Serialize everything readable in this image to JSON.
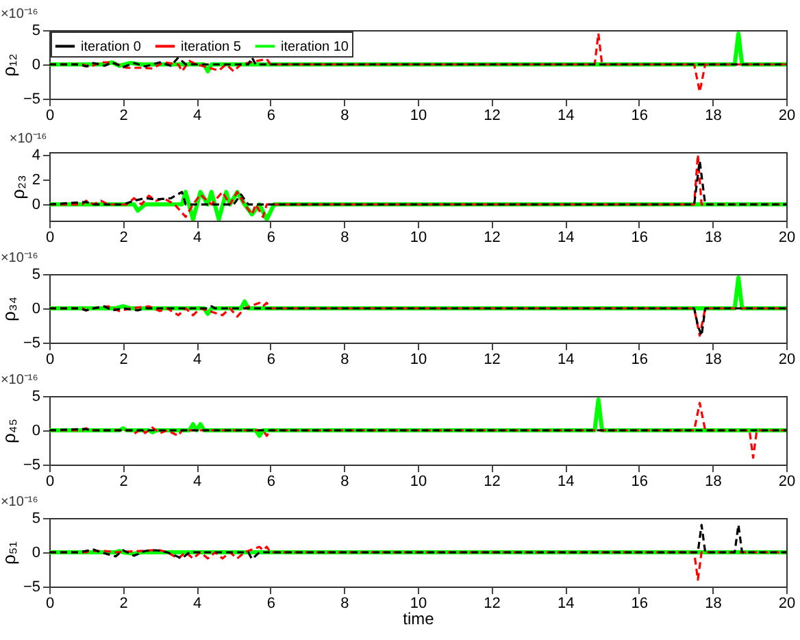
{
  "chart_data": [
    {
      "type": "line",
      "ylabel": "ρ₁₂",
      "annotations": [
        "×10⁻¹⁶"
      ],
      "xlim": [
        0,
        20
      ],
      "xticks": [
        0,
        2,
        4,
        6,
        8,
        10,
        12,
        14,
        16,
        18,
        20
      ],
      "ylim": [
        -5,
        5
      ],
      "yticks": [
        -5,
        0,
        5
      ],
      "legend": "top left",
      "grid": false,
      "series": [
        {
          "name": "iteration 0",
          "color": "#000000",
          "line_style": "dashed",
          "x": [
            0,
            0.8,
            1.0,
            1.2,
            1.5,
            1.7,
            2.0,
            2.3,
            2.6,
            3.0,
            3.3,
            3.5,
            3.7,
            5.4,
            5.5,
            5.6,
            20
          ],
          "values": [
            0,
            0,
            -0.3,
            0.2,
            -0.2,
            0.3,
            -0.4,
            0.2,
            -0.3,
            0.3,
            -0.2,
            1.0,
            0,
            0,
            1.0,
            0,
            0
          ]
        },
        {
          "name": "iteration 5",
          "color": "#ff0000",
          "line_style": "dashed",
          "x": [
            0,
            0.9,
            1.1,
            1.4,
            1.7,
            2.1,
            2.5,
            2.8,
            3.1,
            3.5,
            3.6,
            3.8,
            4.0,
            4.6,
            4.8,
            5.0,
            5.2,
            5.9,
            6.0,
            14.8,
            14.9,
            15.0,
            17.5,
            17.65,
            17.8,
            20
          ],
          "values": [
            0,
            0,
            -0.4,
            0.3,
            0.3,
            -0.5,
            -0.5,
            -0.6,
            0.3,
            0,
            -1.0,
            0.5,
            0,
            -0.9,
            0,
            -1.0,
            0,
            0.8,
            0,
            0,
            4.5,
            0,
            0,
            -4.0,
            0,
            0
          ]
        },
        {
          "name": "iteration 10",
          "color": "#00ff00",
          "line_style": "solid",
          "x": [
            0,
            1.5,
            1.7,
            1.9,
            2.2,
            2.5,
            4.2,
            4.3,
            4.4,
            18.6,
            18.7,
            18.8,
            20
          ],
          "values": [
            0,
            0,
            0.3,
            -0.2,
            0.2,
            0,
            0,
            -1.0,
            0,
            0,
            4.5,
            0,
            0
          ]
        }
      ]
    },
    {
      "type": "line",
      "ylabel": "ρ₂₃",
      "annotations": [
        "×10⁻¹⁶"
      ],
      "xlim": [
        0,
        20
      ],
      "xticks": [
        0,
        2,
        4,
        6,
        8,
        10,
        12,
        14,
        16,
        18,
        20
      ],
      "ylim": [
        -1.3,
        4.2
      ],
      "yticks": [
        0,
        2,
        4
      ],
      "grid": false,
      "series": [
        {
          "color": "#000000",
          "line_style": "dashed",
          "x": [
            0,
            1.0,
            1.2,
            2.0,
            2.3,
            2.6,
            2.9,
            3.3,
            3.6,
            3.7,
            5.0,
            5.2,
            5.4,
            17.5,
            17.65,
            17.8,
            20
          ],
          "values": [
            0,
            0.2,
            0,
            0,
            0.3,
            0.5,
            0.4,
            0.5,
            1.0,
            0,
            0,
            0.8,
            0,
            0,
            3.5,
            0,
            0
          ]
        },
        {
          "color": "#ff0000",
          "line_style": "dashed",
          "x": [
            0,
            0.9,
            1.0,
            1.2,
            1.4,
            1.6,
            2.1,
            2.3,
            2.5,
            2.7,
            2.9,
            3.1,
            3.4,
            3.7,
            3.9,
            4.1,
            4.4,
            4.7,
            4.9,
            5.1,
            5.3,
            5.5,
            5.6,
            5.8,
            5.9,
            17.5,
            17.6,
            17.7,
            20
          ],
          "values": [
            0,
            0,
            0.3,
            0,
            0.3,
            0,
            0,
            0.5,
            0,
            0.7,
            0.3,
            0.5,
            0,
            -1.0,
            0,
            0.8,
            0,
            1.0,
            0,
            1.0,
            0,
            -0.8,
            0,
            -1.0,
            0,
            0,
            4.0,
            0,
            0
          ]
        },
        {
          "color": "#00ff00",
          "line_style": "solid",
          "x": [
            0,
            2.3,
            2.4,
            2.6,
            3.6,
            3.7,
            3.9,
            4.1,
            4.3,
            4.4,
            4.6,
            4.8,
            4.9,
            5.1,
            5.3,
            5.5,
            5.7,
            5.9,
            6.1,
            20
          ],
          "values": [
            0,
            0,
            -0.5,
            0,
            0,
            1.0,
            -1.2,
            1.0,
            0,
            1.0,
            -1.2,
            1.0,
            0,
            1.0,
            0,
            -0.8,
            0,
            -1.2,
            0,
            0
          ]
        }
      ]
    },
    {
      "type": "line",
      "ylabel": "ρ₃₄",
      "annotations": [
        "×10⁻¹⁶"
      ],
      "xlim": [
        0,
        20
      ],
      "xticks": [
        0,
        2,
        4,
        6,
        8,
        10,
        12,
        14,
        16,
        18,
        20
      ],
      "ylim": [
        -5,
        5
      ],
      "yticks": [
        -5,
        0,
        5
      ],
      "grid": false,
      "series": [
        {
          "color": "#000000",
          "line_style": "dashed",
          "x": [
            0,
            0.8,
            1.0,
            1.2,
            1.5,
            1.7,
            2.0,
            2.4,
            2.6,
            4.3,
            4.4,
            4.5,
            17.5,
            17.6,
            17.7,
            17.8,
            20
          ],
          "values": [
            0,
            0,
            -0.3,
            0,
            0.3,
            -0.3,
            0,
            -0.3,
            0,
            0,
            0.3,
            0,
            0,
            -2.5,
            -4.0,
            0,
            0
          ]
        },
        {
          "color": "#ff0000",
          "line_style": "dashed",
          "x": [
            0,
            0.9,
            1.0,
            1.2,
            1.6,
            1.9,
            2.2,
            2.7,
            3.0,
            3.2,
            3.5,
            3.7,
            3.9,
            4.1,
            4.7,
            4.9,
            5.1,
            5.3,
            5.7,
            5.8,
            5.9,
            6.0,
            17.5,
            17.65,
            17.8,
            20
          ],
          "values": [
            0,
            0,
            -0.3,
            0,
            0.3,
            -0.4,
            0,
            0.3,
            -0.4,
            0,
            -1.0,
            0,
            -1.0,
            0,
            -1.0,
            0,
            -1.2,
            0,
            0.8,
            0.3,
            0.8,
            0,
            0,
            -4.0,
            0,
            0
          ]
        },
        {
          "color": "#00ff00",
          "line_style": "solid",
          "x": [
            0,
            1.8,
            2.0,
            2.2,
            4.2,
            4.3,
            4.4,
            5.2,
            5.3,
            5.4,
            18.6,
            18.7,
            18.8,
            20
          ],
          "values": [
            0,
            0,
            0.3,
            0,
            0,
            -0.8,
            0,
            0,
            1.0,
            0,
            0,
            4.5,
            0,
            0
          ]
        }
      ]
    },
    {
      "type": "line",
      "ylabel": "ρ₄₅",
      "annotations": [
        "×10⁻¹⁶"
      ],
      "xlim": [
        0,
        20
      ],
      "xticks": [
        0,
        2,
        4,
        6,
        8,
        10,
        12,
        14,
        16,
        18,
        20
      ],
      "ylim": [
        -5,
        5
      ],
      "yticks": [
        -5,
        0,
        5
      ],
      "grid": false,
      "series": [
        {
          "color": "#000000",
          "line_style": "dashed",
          "x": [
            0,
            1.0,
            1.1,
            20
          ],
          "values": [
            0,
            0.2,
            0,
            0
          ]
        },
        {
          "color": "#ff0000",
          "line_style": "dashed",
          "x": [
            0,
            0.9,
            1.0,
            1.1,
            2.2,
            2.3,
            2.5,
            2.6,
            2.8,
            3.0,
            3.2,
            3.5,
            3.6,
            5.8,
            5.9,
            6.0,
            17.5,
            17.65,
            17.8,
            19.0,
            19.1,
            19.2,
            20
          ],
          "values": [
            0,
            0,
            0.3,
            0,
            0,
            -0.5,
            0.2,
            -0.4,
            0.4,
            -0.4,
            0,
            -0.8,
            0,
            0,
            -0.8,
            0,
            0,
            4.0,
            0,
            0,
            -4.0,
            0,
            0
          ]
        },
        {
          "color": "#00ff00",
          "line_style": "solid",
          "x": [
            0,
            1.9,
            2.0,
            2.1,
            2.7,
            2.8,
            2.9,
            3.8,
            3.9,
            4.0,
            4.1,
            4.2,
            5.6,
            5.7,
            5.8,
            14.8,
            14.9,
            15.0,
            20
          ],
          "values": [
            0,
            0,
            0.3,
            0,
            0,
            -0.3,
            0,
            0,
            0.9,
            0,
            0.9,
            0,
            0,
            -0.8,
            0,
            0,
            4.5,
            0,
            0
          ]
        }
      ]
    },
    {
      "type": "line",
      "xlabel": "time",
      "ylabel": "ρ₅₁",
      "annotations": [
        "×10⁻¹⁶"
      ],
      "xlim": [
        0,
        20
      ],
      "xticks": [
        0,
        2,
        4,
        6,
        8,
        10,
        12,
        14,
        16,
        18,
        20
      ],
      "ylim": [
        -5,
        5
      ],
      "yticks": [
        -5,
        0,
        5
      ],
      "grid": false,
      "series": [
        {
          "color": "#000000",
          "line_style": "dashed",
          "x": [
            0,
            0.8,
            1.2,
            1.4,
            1.8,
            2.0,
            2.3,
            2.6,
            2.9,
            3.2,
            3.6,
            3.8,
            5.4,
            5.5,
            5.7,
            17.6,
            17.7,
            17.8,
            18.6,
            18.7,
            18.8,
            20
          ],
          "values": [
            0,
            0,
            0.4,
            0,
            -0.6,
            0.3,
            -0.5,
            0.2,
            0.3,
            0,
            -0.9,
            0,
            0,
            -1.0,
            0,
            0,
            4.0,
            0,
            0,
            4.0,
            0,
            0
          ]
        },
        {
          "color": "#ff0000",
          "line_style": "dashed",
          "x": [
            0,
            1.0,
            1.1,
            1.5,
            1.8,
            2.8,
            3.0,
            3.2,
            3.5,
            3.7,
            3.9,
            4.1,
            4.3,
            4.5,
            4.7,
            4.9,
            5.1,
            5.3,
            5.7,
            5.8,
            5.9,
            6.0,
            17.5,
            17.6,
            17.7,
            20
          ],
          "values": [
            0,
            0,
            0.2,
            0.2,
            0,
            0.3,
            0.3,
            0,
            -0.9,
            0,
            -0.9,
            0,
            -0.9,
            0,
            -0.9,
            0,
            -0.9,
            0,
            0.8,
            0.3,
            0.8,
            0,
            0,
            -4.0,
            0,
            0
          ]
        },
        {
          "color": "#00ff00",
          "line_style": "solid",
          "x": [
            0,
            1.8,
            1.9,
            2.0,
            2.3,
            2.5,
            20
          ],
          "values": [
            0,
            0,
            0.2,
            0,
            -0.2,
            0,
            0
          ]
        }
      ]
    }
  ]
}
